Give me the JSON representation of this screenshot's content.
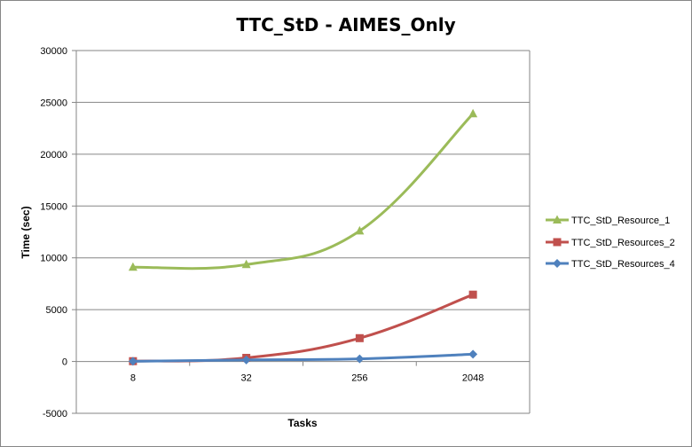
{
  "chart_data": {
    "type": "line",
    "title": "TTC_StD - AIMES_Only",
    "xlabel": "Tasks",
    "ylabel": "Time (sec)",
    "categories": [
      "8",
      "32",
      "256",
      "2048"
    ],
    "ylim": [
      -5000,
      30000
    ],
    "yticks": [
      -5000,
      0,
      5000,
      10000,
      15000,
      20000,
      25000,
      30000
    ],
    "grid": true,
    "legend_position": "right",
    "series": [
      {
        "name": "TTC_StD_Resource_1",
        "values": [
          9100,
          9350,
          12600,
          23900
        ],
        "color": "#9BBB59",
        "marker": "triangle"
      },
      {
        "name": "TTC_StD_Resources_2",
        "values": [
          30,
          350,
          2250,
          6450
        ],
        "color": "#C0504D",
        "marker": "square"
      },
      {
        "name": "TTC_StD_Resources_4",
        "values": [
          20,
          150,
          250,
          700
        ],
        "color": "#4F81BD",
        "marker": "diamond"
      }
    ]
  }
}
